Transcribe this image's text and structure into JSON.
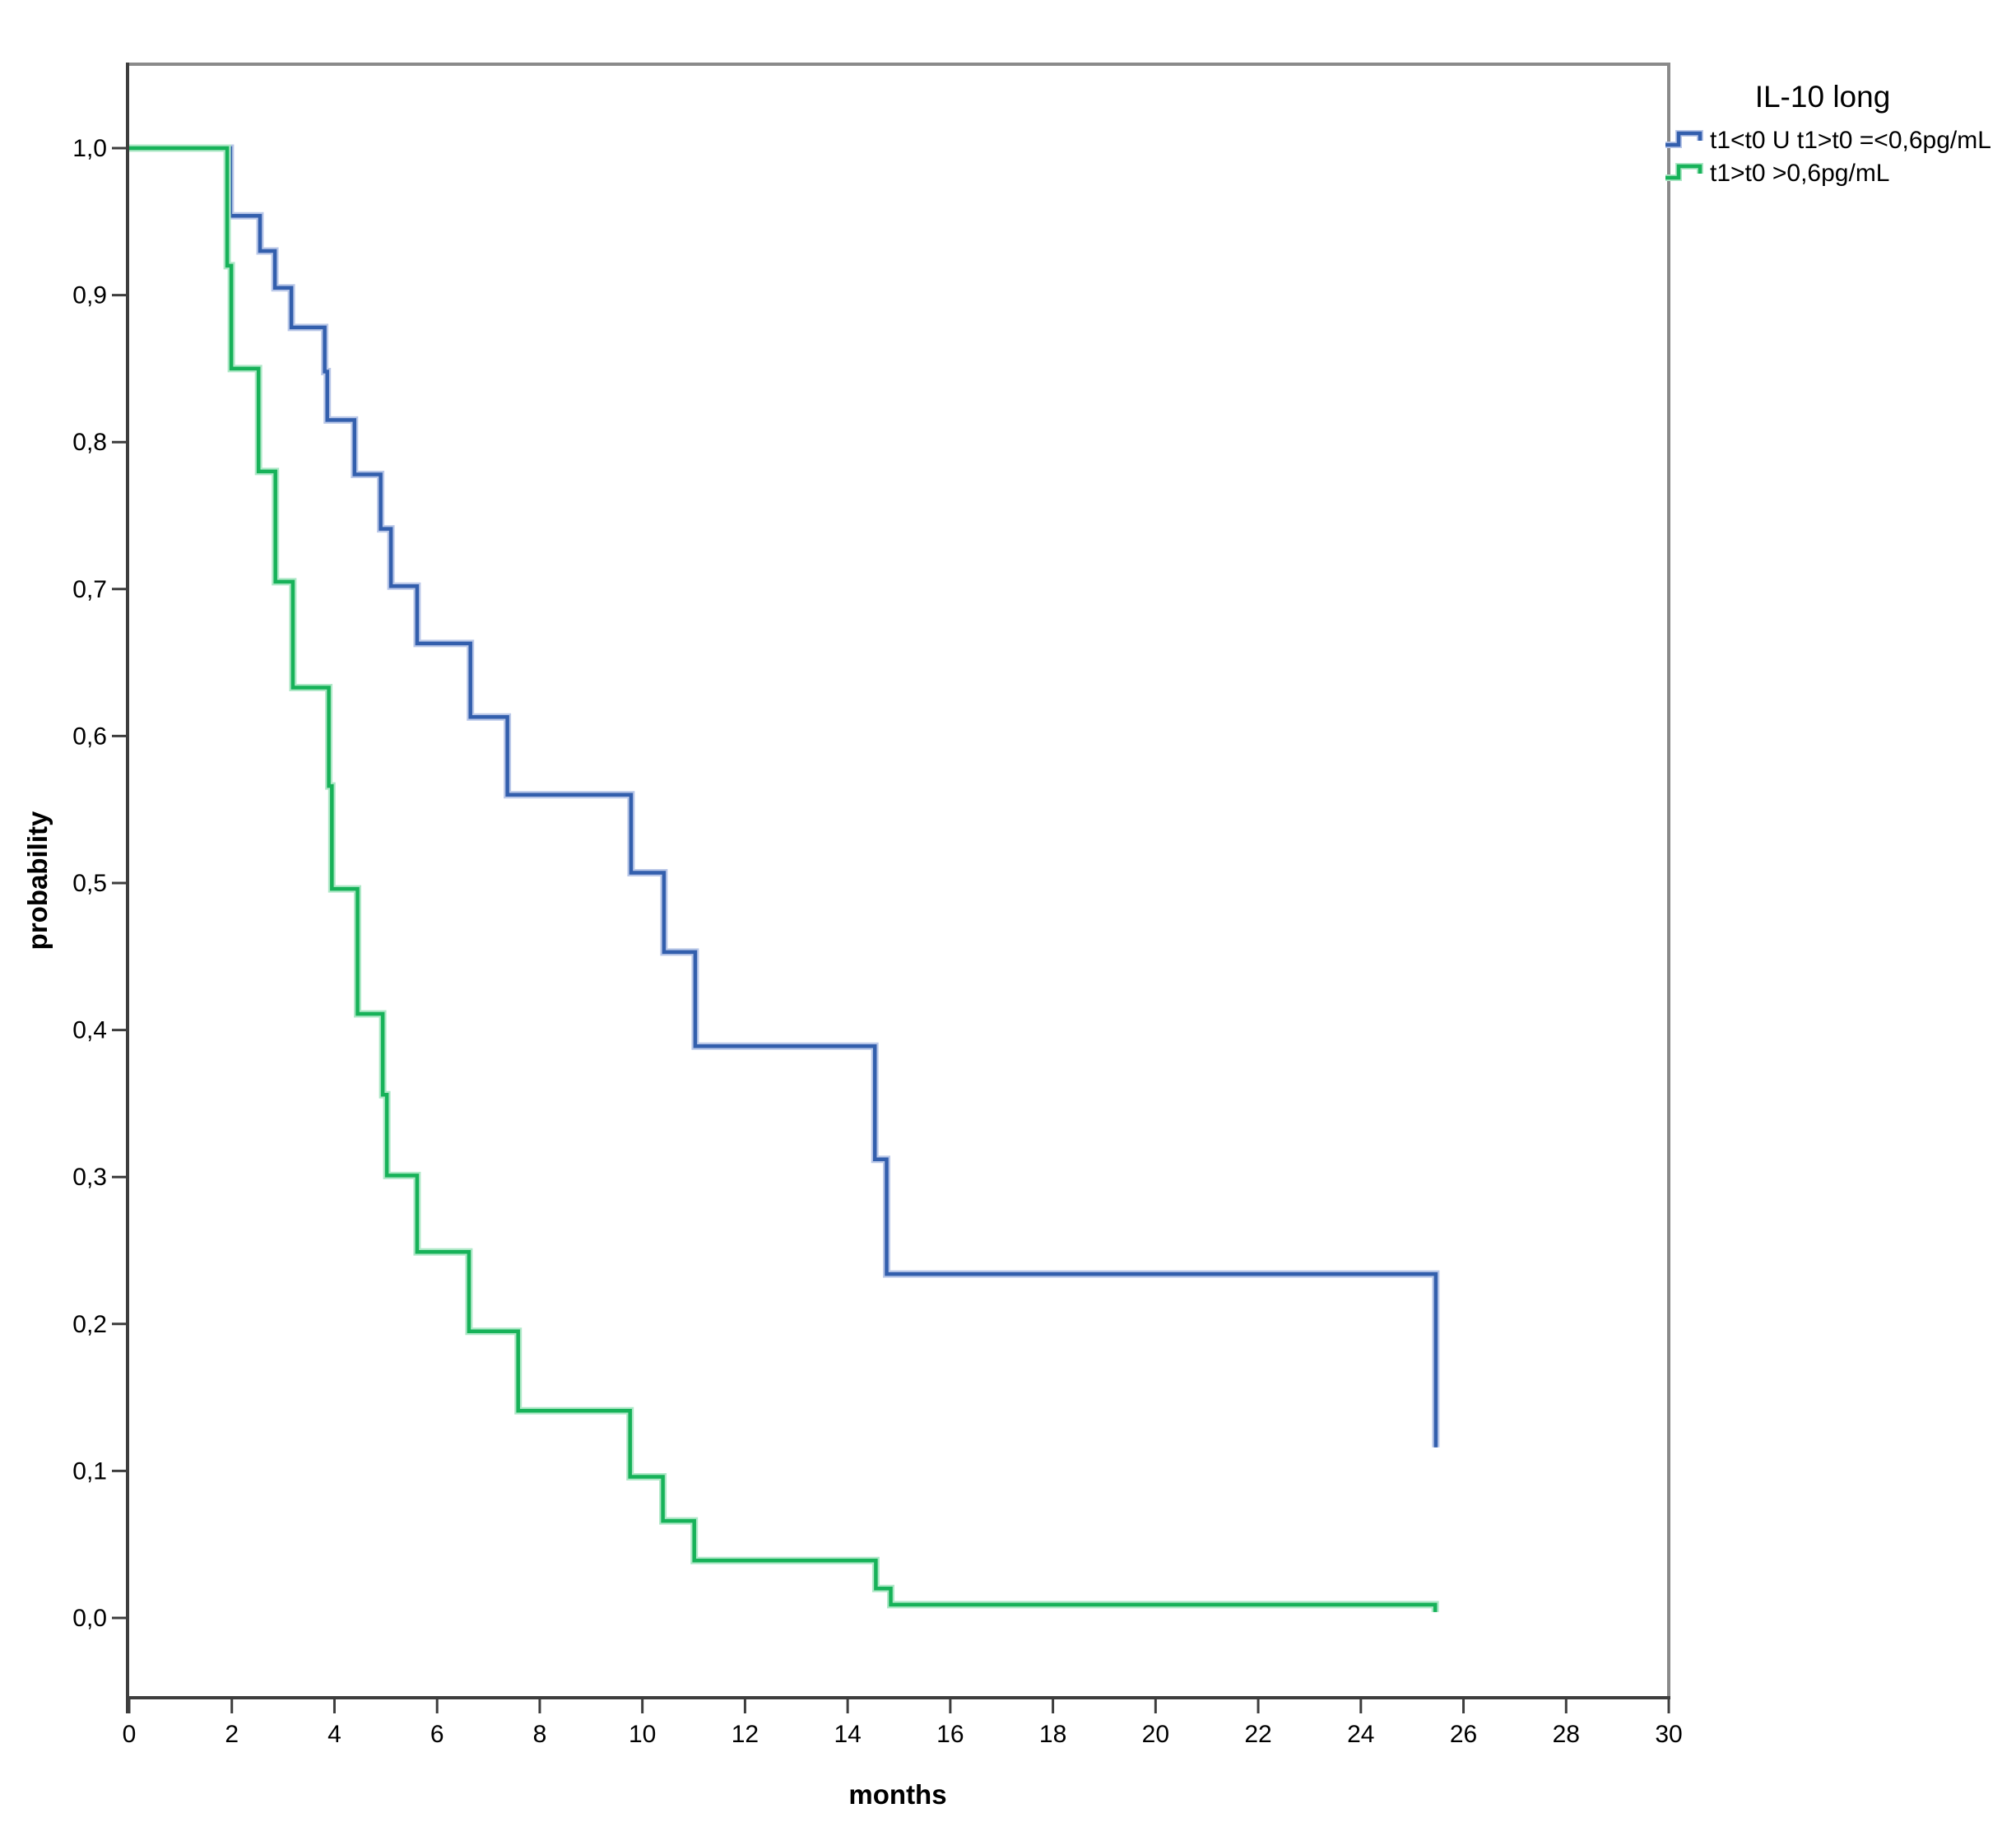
{
  "chart_data": {
    "type": "line",
    "variant": "kaplan_meier_step",
    "title": "",
    "legend_title": "IL-10 long",
    "legend_position": "outside-top-right",
    "xlabel": "months",
    "ylabel": "probability",
    "xlim": [
      0,
      30
    ],
    "ylim": [
      0.0,
      1.0
    ],
    "grid": false,
    "decimal_separator": ",",
    "axis_color": "#3d3d3d",
    "frame_color": "#8a8a8a",
    "x_ticks": [
      "0",
      "2",
      "4",
      "6",
      "8",
      "10",
      "12",
      "14",
      "16",
      "18",
      "20",
      "22",
      "24",
      "26",
      "28",
      "30"
    ],
    "y_ticks": [
      {
        "value": 0.0,
        "label": "0,0"
      },
      {
        "value": 0.1,
        "label": "0,1"
      },
      {
        "value": 0.2,
        "label": "0,2"
      },
      {
        "value": 0.3,
        "label": "0,3"
      },
      {
        "value": 0.4,
        "label": "0,4"
      },
      {
        "value": 0.5,
        "label": "0,5"
      },
      {
        "value": 0.6,
        "label": "0,6"
      },
      {
        "value": 0.7,
        "label": "0,7"
      },
      {
        "value": 0.8,
        "label": "0,8"
      },
      {
        "value": 0.9,
        "label": "0,9"
      },
      {
        "value": 1.0,
        "label": "1,0"
      }
    ],
    "series": [
      {
        "name": "t1<t0 U t1>t0 =<0,6pg/mL",
        "color": "#335fad",
        "halo_color": "#b9c7e8",
        "points": [
          [
            0,
            1.0
          ],
          [
            1.97,
            0.954
          ],
          [
            2.55,
            0.93
          ],
          [
            2.84,
            0.905
          ],
          [
            3.16,
            0.878
          ],
          [
            3.81,
            0.848
          ],
          [
            3.86,
            0.815
          ],
          [
            4.39,
            0.778
          ],
          [
            4.9,
            0.741
          ],
          [
            5.1,
            0.702
          ],
          [
            5.61,
            0.663
          ],
          [
            6.65,
            0.613
          ],
          [
            7.37,
            0.56
          ],
          [
            9.78,
            0.507
          ],
          [
            10.42,
            0.453
          ],
          [
            11.03,
            0.389
          ],
          [
            14.53,
            0.312
          ],
          [
            14.76,
            0.234
          ],
          [
            25.46,
            0.116
          ]
        ]
      },
      {
        "name": "t1>t0 >0,6pg/mL",
        "color": "#17b259",
        "halo_color": "#aee8c7",
        "points": [
          [
            0,
            1.0
          ],
          [
            1.91,
            0.92
          ],
          [
            1.99,
            0.85
          ],
          [
            2.52,
            0.78
          ],
          [
            2.85,
            0.705
          ],
          [
            3.19,
            0.633
          ],
          [
            3.89,
            0.566
          ],
          [
            3.95,
            0.496
          ],
          [
            4.45,
            0.411
          ],
          [
            4.94,
            0.356
          ],
          [
            5.02,
            0.301
          ],
          [
            5.61,
            0.249
          ],
          [
            6.62,
            0.195
          ],
          [
            7.58,
            0.141
          ],
          [
            9.76,
            0.096
          ],
          [
            10.4,
            0.066
          ],
          [
            11.01,
            0.039
          ],
          [
            14.55,
            0.02
          ],
          [
            14.84,
            0.009
          ],
          [
            25.45,
            0.004
          ]
        ]
      }
    ]
  }
}
